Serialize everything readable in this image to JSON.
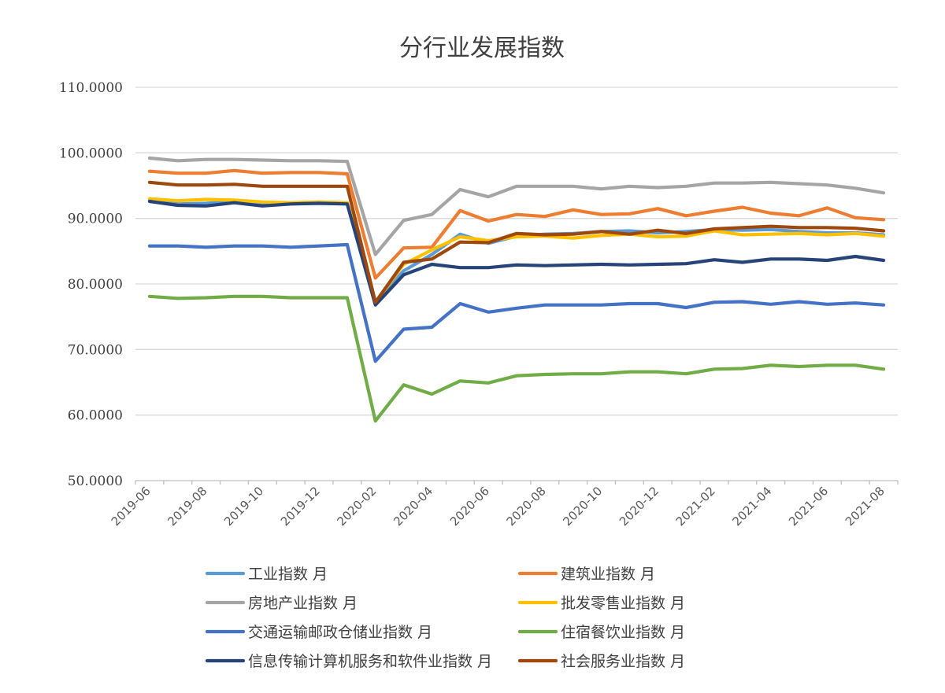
{
  "chart_data": {
    "type": "line",
    "title": "分行业发展指数",
    "ylim": [
      50,
      110
    ],
    "yticks": [
      50,
      60,
      70,
      80,
      90,
      100,
      110
    ],
    "ytick_labels": [
      "50.0000",
      "60.0000",
      "70.0000",
      "80.0000",
      "90.0000",
      "100.0000",
      "110.0000"
    ],
    "x": [
      "2019-06",
      "2019-07",
      "2019-08",
      "2019-09",
      "2019-10",
      "2019-11",
      "2019-12",
      "2020-01",
      "2020-02",
      "2020-03",
      "2020-04",
      "2020-05",
      "2020-06",
      "2020-07",
      "2020-08",
      "2020-09",
      "2020-10",
      "2020-11",
      "2020-12",
      "2021-01",
      "2021-02",
      "2021-03",
      "2021-04",
      "2021-05",
      "2021-06",
      "2021-07",
      "2021-08"
    ],
    "x_tick_labels": [
      "2019-06",
      "2019-08",
      "2019-10",
      "2019-12",
      "2020-02",
      "2020-04",
      "2020-06",
      "2020-08",
      "2020-10",
      "2020-12",
      "2021-02",
      "2021-04",
      "2021-06",
      "2021-08"
    ],
    "grid": "horizontal",
    "legend_position": "bottom",
    "series": [
      {
        "name": "工业指数 月",
        "color": "#5B9BD5",
        "values": [
          92.8,
          92.2,
          92.3,
          92.6,
          92.2,
          92.3,
          92.5,
          92.4,
          77.3,
          82.0,
          84.5,
          87.6,
          86.2,
          87.3,
          87.6,
          87.7,
          88.0,
          88.1,
          87.8,
          88.0,
          88.3,
          88.2,
          88.3,
          88.0,
          87.8,
          87.8,
          87.5
        ]
      },
      {
        "name": "建筑业指数 月",
        "color": "#ED7D31",
        "values": [
          97.2,
          96.9,
          96.9,
          97.3,
          96.9,
          97.0,
          97.0,
          96.8,
          80.9,
          85.5,
          85.6,
          91.2,
          89.6,
          90.6,
          90.3,
          91.3,
          90.6,
          90.7,
          91.5,
          90.4,
          91.1,
          91.7,
          90.8,
          90.4,
          91.6,
          90.1,
          89.8
        ]
      },
      {
        "name": "房地产业指数 月",
        "color": "#A5A5A5",
        "values": [
          99.2,
          98.8,
          99.0,
          99.0,
          98.9,
          98.8,
          98.8,
          98.7,
          84.5,
          89.7,
          90.6,
          94.4,
          93.3,
          94.9,
          94.9,
          94.9,
          94.5,
          94.9,
          94.7,
          94.9,
          95.4,
          95.4,
          95.5,
          95.3,
          95.1,
          94.6,
          93.9
        ]
      },
      {
        "name": "批发零售业指数 月",
        "color": "#FFC000",
        "values": [
          93.0,
          92.7,
          92.9,
          92.8,
          92.5,
          92.4,
          92.5,
          92.4,
          77.2,
          83.0,
          85.2,
          87.2,
          86.6,
          87.2,
          87.3,
          87.0,
          87.4,
          87.6,
          87.2,
          87.3,
          88.1,
          87.5,
          87.6,
          87.7,
          87.5,
          87.7,
          87.3
        ]
      },
      {
        "name": "交通运输邮政仓储业指数 月",
        "color": "#4472C4",
        "values": [
          85.8,
          85.8,
          85.6,
          85.8,
          85.8,
          85.6,
          85.8,
          86.0,
          68.2,
          73.1,
          73.4,
          77.0,
          75.7,
          76.3,
          76.8,
          76.8,
          76.8,
          77.0,
          77.0,
          76.4,
          77.2,
          77.3,
          76.9,
          77.3,
          76.9,
          77.1,
          76.8
        ]
      },
      {
        "name": "住宿餐饮业指数 月",
        "color": "#70AD47",
        "values": [
          78.1,
          77.8,
          77.9,
          78.1,
          78.1,
          77.9,
          77.9,
          77.9,
          59.1,
          64.6,
          63.2,
          65.2,
          64.9,
          66.0,
          66.2,
          66.3,
          66.3,
          66.6,
          66.6,
          66.3,
          67.0,
          67.1,
          67.6,
          67.4,
          67.6,
          67.6,
          67.0
        ]
      },
      {
        "name": "信息传输计算机服务和软件业指数 月",
        "color": "#264478",
        "values": [
          92.6,
          92.0,
          91.9,
          92.4,
          91.9,
          92.2,
          92.3,
          92.2,
          76.8,
          81.4,
          83.0,
          82.5,
          82.5,
          82.9,
          82.8,
          82.9,
          83.0,
          82.9,
          83.0,
          83.1,
          83.7,
          83.3,
          83.8,
          83.8,
          83.6,
          84.2,
          83.6
        ]
      },
      {
        "name": "社会服务业指数 月",
        "color": "#9E480E",
        "values": [
          95.5,
          95.1,
          95.1,
          95.2,
          94.9,
          94.9,
          94.9,
          94.9,
          77.2,
          83.3,
          83.8,
          86.4,
          86.3,
          87.7,
          87.5,
          87.6,
          88.0,
          87.6,
          88.2,
          87.7,
          88.4,
          88.6,
          88.8,
          88.6,
          88.6,
          88.5,
          88.1
        ]
      }
    ]
  }
}
